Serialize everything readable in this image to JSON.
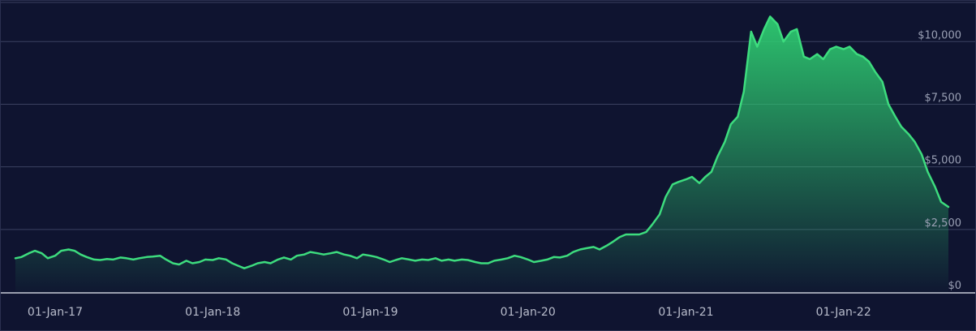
{
  "colors": {
    "background": "#0f1430",
    "line": "#3ddc7e",
    "area_top": "#2ecc71",
    "grid": "#3b4160",
    "axis": "#c9ccd8",
    "label": "#9aa0b4"
  },
  "chart_data": {
    "type": "area",
    "title": "",
    "xlabel": "",
    "ylabel": "",
    "grid": true,
    "legend": "none",
    "ylim": [
      0,
      11500
    ],
    "xlim": [
      "2016-10-01",
      "2022-10-01"
    ],
    "y_ticks": [
      {
        "value": 0,
        "label": "$0"
      },
      {
        "value": 2500,
        "label": "$2,500"
      },
      {
        "value": 5000,
        "label": "$5,000"
      },
      {
        "value": 7500,
        "label": "$7,500"
      },
      {
        "value": 10000,
        "label": "$10,000"
      }
    ],
    "x_ticks": [
      {
        "value": "2017-01-01",
        "label": "01-Jan-17"
      },
      {
        "value": "2018-01-01",
        "label": "01-Jan-18"
      },
      {
        "value": "2019-01-01",
        "label": "01-Jan-19"
      },
      {
        "value": "2020-01-01",
        "label": "01-Jan-20"
      },
      {
        "value": "2021-01-01",
        "label": "01-Jan-21"
      },
      {
        "value": "2022-01-01",
        "label": "01-Jan-22"
      }
    ],
    "series": [
      {
        "values": [
          [
            "2016-10-01",
            1350
          ],
          [
            "2016-10-15",
            1400
          ],
          [
            "2016-11-01",
            1550
          ],
          [
            "2016-11-15",
            1650
          ],
          [
            "2016-12-01",
            1550
          ],
          [
            "2016-12-15",
            1350
          ],
          [
            "2017-01-01",
            1450
          ],
          [
            "2017-01-15",
            1650
          ],
          [
            "2017-02-01",
            1700
          ],
          [
            "2017-02-15",
            1650
          ],
          [
            "2017-03-01",
            1500
          ],
          [
            "2017-03-15",
            1400
          ],
          [
            "2017-04-01",
            1300
          ],
          [
            "2017-04-15",
            1280
          ],
          [
            "2017-05-01",
            1320
          ],
          [
            "2017-05-15",
            1300
          ],
          [
            "2017-06-01",
            1380
          ],
          [
            "2017-06-15",
            1350
          ],
          [
            "2017-07-01",
            1300
          ],
          [
            "2017-07-15",
            1350
          ],
          [
            "2017-08-01",
            1400
          ],
          [
            "2017-08-15",
            1420
          ],
          [
            "2017-09-01",
            1450
          ],
          [
            "2017-09-15",
            1300
          ],
          [
            "2017-10-01",
            1150
          ],
          [
            "2017-10-15",
            1100
          ],
          [
            "2017-11-01",
            1250
          ],
          [
            "2017-11-15",
            1150
          ],
          [
            "2017-12-01",
            1200
          ],
          [
            "2017-12-15",
            1300
          ],
          [
            "2018-01-01",
            1280
          ],
          [
            "2018-01-15",
            1350
          ],
          [
            "2018-02-01",
            1300
          ],
          [
            "2018-02-15",
            1150
          ],
          [
            "2018-03-01",
            1050
          ],
          [
            "2018-03-15",
            950
          ],
          [
            "2018-04-01",
            1050
          ],
          [
            "2018-04-15",
            1150
          ],
          [
            "2018-05-01",
            1200
          ],
          [
            "2018-05-15",
            1150
          ],
          [
            "2018-06-01",
            1300
          ],
          [
            "2018-06-15",
            1380
          ],
          [
            "2018-07-01",
            1300
          ],
          [
            "2018-07-15",
            1450
          ],
          [
            "2018-08-01",
            1500
          ],
          [
            "2018-08-15",
            1600
          ],
          [
            "2018-09-01",
            1550
          ],
          [
            "2018-09-15",
            1500
          ],
          [
            "2018-10-01",
            1550
          ],
          [
            "2018-10-15",
            1600
          ],
          [
            "2018-11-01",
            1500
          ],
          [
            "2018-11-15",
            1450
          ],
          [
            "2018-12-01",
            1350
          ],
          [
            "2018-12-15",
            1500
          ],
          [
            "2019-01-01",
            1450
          ],
          [
            "2019-01-15",
            1400
          ],
          [
            "2019-02-01",
            1300
          ],
          [
            "2019-02-15",
            1200
          ],
          [
            "2019-03-01",
            1280
          ],
          [
            "2019-03-15",
            1350
          ],
          [
            "2019-04-01",
            1300
          ],
          [
            "2019-04-15",
            1250
          ],
          [
            "2019-05-01",
            1300
          ],
          [
            "2019-05-15",
            1280
          ],
          [
            "2019-06-01",
            1350
          ],
          [
            "2019-06-15",
            1250
          ],
          [
            "2019-07-01",
            1300
          ],
          [
            "2019-07-15",
            1250
          ],
          [
            "2019-08-01",
            1300
          ],
          [
            "2019-08-15",
            1280
          ],
          [
            "2019-09-01",
            1200
          ],
          [
            "2019-09-15",
            1150
          ],
          [
            "2019-10-01",
            1150
          ],
          [
            "2019-10-15",
            1250
          ],
          [
            "2019-11-01",
            1300
          ],
          [
            "2019-11-15",
            1350
          ],
          [
            "2019-12-01",
            1450
          ],
          [
            "2019-12-15",
            1400
          ],
          [
            "2020-01-01",
            1300
          ],
          [
            "2020-01-15",
            1200
          ],
          [
            "2020-02-01",
            1250
          ],
          [
            "2020-02-15",
            1300
          ],
          [
            "2020-03-01",
            1400
          ],
          [
            "2020-03-15",
            1380
          ],
          [
            "2020-04-01",
            1450
          ],
          [
            "2020-04-15",
            1600
          ],
          [
            "2020-05-01",
            1700
          ],
          [
            "2020-05-15",
            1750
          ],
          [
            "2020-06-01",
            1800
          ],
          [
            "2020-06-15",
            1700
          ],
          [
            "2020-07-01",
            1850
          ],
          [
            "2020-07-15",
            2000
          ],
          [
            "2020-08-01",
            2200
          ],
          [
            "2020-08-15",
            2300
          ],
          [
            "2020-09-01",
            2300
          ],
          [
            "2020-09-15",
            2300
          ],
          [
            "2020-10-01",
            2400
          ],
          [
            "2020-10-15",
            2700
          ],
          [
            "2020-11-01",
            3100
          ],
          [
            "2020-11-15",
            3800
          ],
          [
            "2020-12-01",
            4300
          ],
          [
            "2020-12-15",
            4400
          ],
          [
            "2021-01-01",
            4500
          ],
          [
            "2021-01-15",
            4600
          ],
          [
            "2021-02-01",
            4350
          ],
          [
            "2021-02-15",
            4600
          ],
          [
            "2021-03-01",
            4800
          ],
          [
            "2021-03-15",
            5400
          ],
          [
            "2021-04-01",
            6000
          ],
          [
            "2021-04-15",
            6700
          ],
          [
            "2021-05-01",
            7000
          ],
          [
            "2021-05-15",
            8000
          ],
          [
            "2021-06-01",
            10400
          ],
          [
            "2021-06-15",
            9800
          ],
          [
            "2021-07-01",
            10500
          ],
          [
            "2021-07-15",
            11000
          ],
          [
            "2021-08-01",
            10700
          ],
          [
            "2021-08-15",
            10000
          ],
          [
            "2021-09-01",
            10400
          ],
          [
            "2021-09-15",
            10500
          ],
          [
            "2021-10-01",
            9400
          ],
          [
            "2021-10-15",
            9300
          ],
          [
            "2021-11-01",
            9500
          ],
          [
            "2021-11-15",
            9300
          ],
          [
            "2021-12-01",
            9700
          ],
          [
            "2021-12-15",
            9800
          ],
          [
            "2022-01-01",
            9700
          ],
          [
            "2022-01-15",
            9800
          ],
          [
            "2022-02-01",
            9500
          ],
          [
            "2022-02-15",
            9400
          ],
          [
            "2022-03-01",
            9200
          ],
          [
            "2022-03-15",
            8800
          ],
          [
            "2022-04-01",
            8400
          ],
          [
            "2022-04-15",
            7500
          ],
          [
            "2022-05-01",
            7000
          ],
          [
            "2022-05-15",
            6600
          ],
          [
            "2022-06-01",
            6300
          ],
          [
            "2022-06-15",
            6000
          ],
          [
            "2022-07-01",
            5500
          ],
          [
            "2022-07-15",
            4800
          ],
          [
            "2022-08-01",
            4200
          ],
          [
            "2022-08-15",
            3600
          ],
          [
            "2022-09-01",
            3400
          ]
        ]
      }
    ]
  }
}
